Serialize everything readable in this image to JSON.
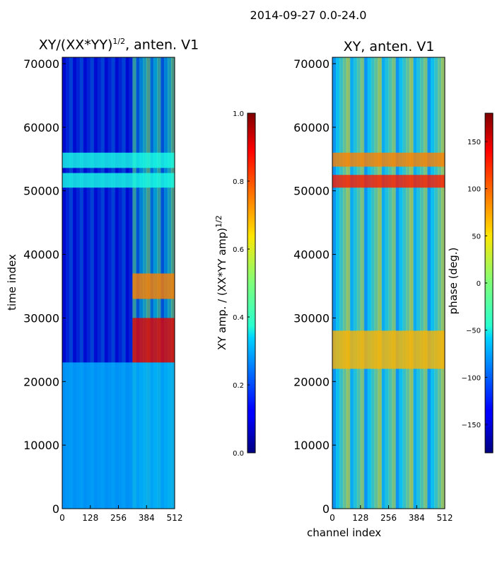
{
  "figure": {
    "suptitle": "2014-09-27 0.0-24.0"
  },
  "chart_data": [
    {
      "type": "heatmap",
      "title_text": "XY/(XX*YY)",
      "title_sup": "1/2",
      "title_suffix": ", anten. V1",
      "ylabel": "time index",
      "xlabel": "",
      "xlim": [
        0,
        512
      ],
      "ylim": [
        0,
        71000
      ],
      "xticks": [
        0,
        128,
        256,
        384,
        512
      ],
      "yticks": [
        0,
        10000,
        20000,
        30000,
        40000,
        50000,
        60000,
        70000
      ],
      "colorbar": {
        "label_text": "XY amp. / (XX*YY amp)",
        "label_sup": "1/2",
        "min": 0.0,
        "max": 1.0,
        "ticks": [
          "0.0",
          "0.2",
          "0.4",
          "0.6",
          "0.8",
          "1.0"
        ],
        "colormap": "jet"
      },
      "bands": [
        {
          "y0": 0,
          "y1": 23000,
          "level": 0.3
        },
        {
          "y0": 23000,
          "y1": 30000,
          "level": 0.9
        },
        {
          "y0": 33000,
          "y1": 37000,
          "level": 0.75
        },
        {
          "y0": 50500,
          "y1": 52800,
          "level": 0.4
        },
        {
          "y0": 53600,
          "y1": 56000,
          "level": 0.4
        }
      ]
    },
    {
      "type": "heatmap",
      "title": "XY, anten. V1",
      "ylabel": "",
      "xlabel": "channel index",
      "xlim": [
        0,
        512
      ],
      "ylim": [
        0,
        71000
      ],
      "xticks": [
        0,
        128,
        256,
        384,
        512
      ],
      "yticks": [
        0,
        10000,
        20000,
        30000,
        40000,
        50000,
        60000,
        70000
      ],
      "colorbar": {
        "label": "phase (deg.)",
        "min": -180,
        "max": 180,
        "ticks": [
          "−150",
          "−100",
          "−50",
          "0",
          "50",
          "100",
          "150"
        ],
        "tick_values": [
          -150,
          -100,
          -50,
          0,
          50,
          100,
          150
        ],
        "colormap": "jet"
      },
      "bands": [
        {
          "y0": 53800,
          "y1": 56000,
          "level": 0.75
        },
        {
          "y0": 50500,
          "y1": 52500,
          "level": 0.85
        },
        {
          "y0": 22000,
          "y1": 28000,
          "level": 0.7
        }
      ]
    }
  ]
}
